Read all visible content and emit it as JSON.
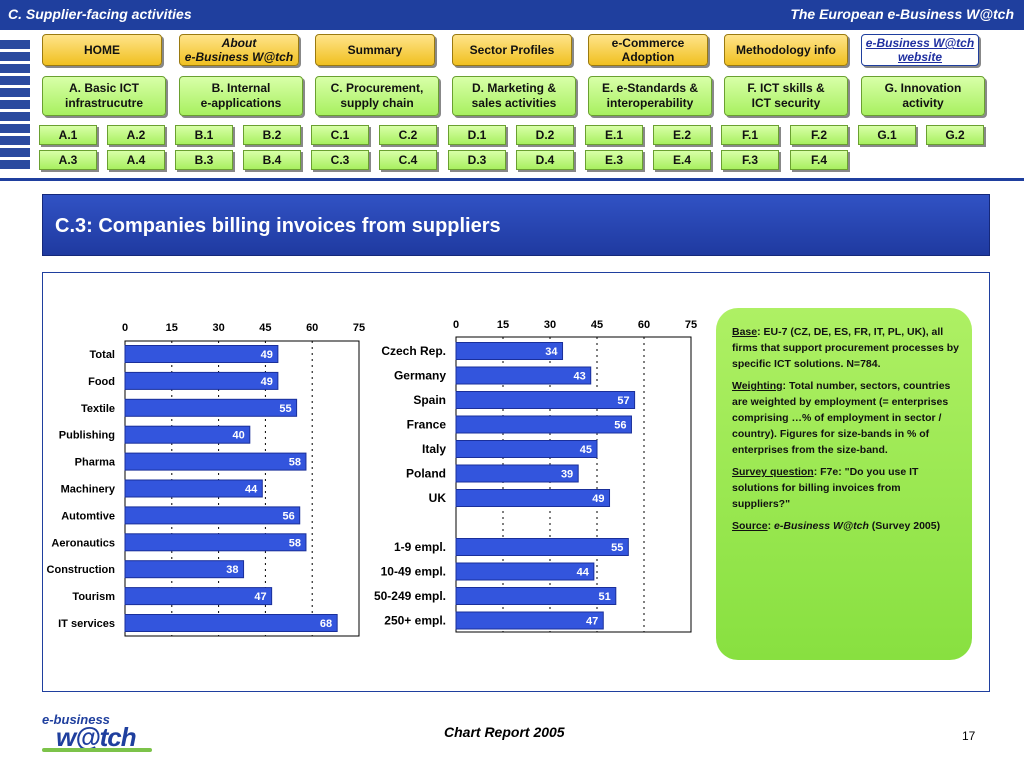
{
  "header": {
    "left": "C. Supplier-facing activities",
    "right": "The European e-Business W@tch"
  },
  "nav": {
    "top": [
      {
        "l1": "HOME",
        "l2": ""
      },
      {
        "l1": "About",
        "l2": "e-Business W@tch"
      },
      {
        "l1": "Summary",
        "l2": ""
      },
      {
        "l1": "Sector Profiles",
        "l2": ""
      },
      {
        "l1": "e-Commerce",
        "l2": "Adoption"
      },
      {
        "l1": "Methodology info",
        "l2": ""
      },
      {
        "l1": "e-Business W@tch",
        "l2": "website"
      }
    ],
    "categories": [
      {
        "l1": "A. Basic ICT",
        "l2": "infrastrucutre"
      },
      {
        "l1": "B. Internal",
        "l2": "e-applications"
      },
      {
        "l1": "C. Procurement,",
        "l2": "supply chain"
      },
      {
        "l1": "D. Marketing &",
        "l2": "sales activities"
      },
      {
        "l1": "E. e-Standards &",
        "l2": "interoperability"
      },
      {
        "l1": "F. ICT skills &",
        "l2": "ICT security"
      },
      {
        "l1": "G. Innovation",
        "l2": "activity"
      }
    ],
    "row1": [
      "A.1",
      "A.2",
      "B.1",
      "B.2",
      "C.1",
      "C.2",
      "D.1",
      "D.2",
      "E.1",
      "E.2",
      "F.1",
      "F.2",
      "G.1",
      "G.2"
    ],
    "row2": [
      "A.3",
      "A.4",
      "B.3",
      "B.4",
      "C.3",
      "C.4",
      "D.3",
      "D.4",
      "E.3",
      "E.4",
      "F.3",
      "F.4"
    ]
  },
  "page": {
    "title": "C.3: Companies billing invoices from suppliers"
  },
  "notes": {
    "base_label": "Base",
    "base_text": ": EU-7 (CZ, DE, ES, FR, IT, PL, UK), all firms that support procurement processes by specific ICT solutions. N=784.",
    "weighting_label": "Weighting",
    "weighting_text": ": Total number, sectors, countries are weighted by employment (= enterprises comprising …% of employment in sector / country). Figures for size-bands in % of enterprises from the size-band.",
    "survey_label": "Survey question",
    "survey_text": ": F7e: \"Do you use IT solutions for billing invoices from suppliers?\"",
    "source_label": "Source",
    "source_pub": "e-Business W@tch",
    "source_rest": " (Survey 2005)"
  },
  "footer": {
    "center": "Chart Report 2005",
    "page": "17",
    "logo_top": "e-business",
    "logo_main": "w@tch"
  },
  "colors": {
    "bar": "#3355dd",
    "bar_border": "#1a2f9a",
    "accent": "#1f3f9e"
  },
  "chart_data": [
    {
      "type": "bar",
      "orientation": "horizontal",
      "categories": [
        "Total",
        "Food",
        "Textile",
        "Publishing",
        "Pharma",
        "Machinery",
        "Automtive",
        "Aeronautics",
        "Construction",
        "Tourism",
        "IT services"
      ],
      "values": [
        49,
        49,
        55,
        40,
        58,
        44,
        56,
        58,
        38,
        47,
        68
      ],
      "xlim": [
        0,
        75
      ],
      "xticks": [
        0,
        15,
        30,
        45,
        60,
        75
      ],
      "tick_labels": [
        "0",
        "15",
        "30",
        "45",
        "60",
        "75"
      ],
      "grid": true
    },
    {
      "type": "bar",
      "orientation": "horizontal",
      "groups": [
        {
          "categories": [
            "Czech Rep.",
            "Germany",
            "Spain",
            "France",
            "Italy",
            "Poland",
            "UK"
          ],
          "values": [
            34,
            43,
            57,
            56,
            45,
            39,
            49
          ]
        },
        {
          "categories": [
            "1-9 empl.",
            "10-49 empl.",
            "50-249 empl.",
            "250+ empl."
          ],
          "values": [
            55,
            44,
            51,
            47
          ]
        }
      ],
      "xlim": [
        0,
        75
      ],
      "xticks": [
        0,
        15,
        30,
        45,
        60,
        75
      ],
      "tick_labels": [
        "0",
        "15",
        "30",
        "45",
        "60",
        "75"
      ],
      "grid": true
    }
  ]
}
